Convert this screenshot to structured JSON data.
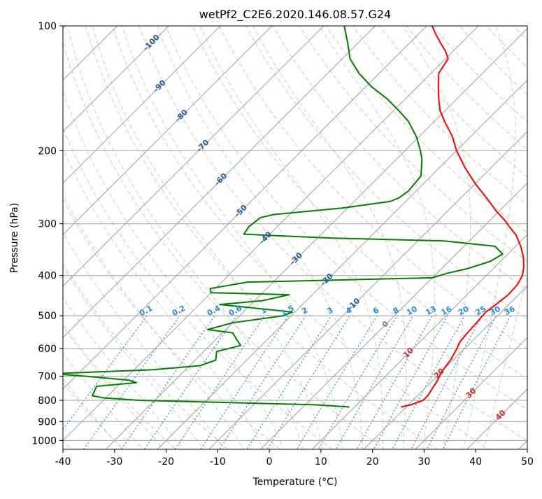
{
  "chart_data": {
    "type": "line",
    "chart_kind": "skew-t log-p diagram",
    "title": "wetPf2_C2E6.2020.146.08.57.G24",
    "xlabel": "Temperature (°C)",
    "ylabel": "Pressure (hPa)",
    "x_scale": "linear (skewed isotherms)",
    "y_scale": "log (inverted)",
    "xlim": [
      -40,
      50
    ],
    "ylim": [
      1050,
      100
    ],
    "x_ticks": [
      -40,
      -30,
      -20,
      -10,
      0,
      10,
      20,
      30,
      40,
      50
    ],
    "y_ticks": [
      100,
      200,
      300,
      400,
      500,
      600,
      700,
      800,
      900,
      1000
    ],
    "grid": true,
    "colors": {
      "temperature": "#ff0000",
      "dewpoint": "#008000",
      "isotherm_grid": "#a0a0a0",
      "dry_adiabat": "#f4a582",
      "moist_adiabat": "#a6d3a0",
      "mixing_ratio": "#1f8ce6",
      "upper_isotherm_label": "#1f5fa0",
      "lower_isotherm_label": "#d62728",
      "zero_label": "#808080"
    },
    "upper_isotherm_labels": [
      "-100",
      "-90",
      "-80",
      "-70",
      "-60",
      "-50",
      "-40",
      "-30",
      "-20",
      "-10"
    ],
    "lower_isotherm_labels": [
      "0",
      "10",
      "20",
      "30",
      "40"
    ],
    "mixing_ratio_labels": [
      "0.1",
      "0.2",
      "0.4",
      "0.6",
      "1",
      "1.5",
      "2",
      "3",
      "4",
      "6",
      "8",
      "10",
      "13",
      "16",
      "20",
      "25",
      "30",
      "36"
    ],
    "series": [
      {
        "key": "temperature",
        "points": [
          [
            830,
            19.0
          ],
          [
            820,
            20.5
          ],
          [
            800,
            22.0
          ],
          [
            780,
            22.0
          ],
          [
            750,
            21.5
          ],
          [
            720,
            21.0
          ],
          [
            680,
            20.0
          ],
          [
            640,
            19.5
          ],
          [
            600,
            18.5
          ],
          [
            580,
            17.8
          ],
          [
            550,
            17.5
          ],
          [
            520,
            17.3
          ],
          [
            490,
            17.0
          ],
          [
            470,
            17.5
          ],
          [
            445,
            18.0
          ],
          [
            420,
            17.8
          ],
          [
            400,
            17.0
          ],
          [
            380,
            15.5
          ],
          [
            360,
            13.5
          ],
          [
            340,
            11.0
          ],
          [
            320,
            8.0
          ],
          [
            305,
            5.0
          ],
          [
            295,
            3.0
          ],
          [
            280,
            -0.5
          ],
          [
            260,
            -5.0
          ],
          [
            240,
            -10.0
          ],
          [
            220,
            -15.0
          ],
          [
            200,
            -20.0
          ],
          [
            185,
            -23.5
          ],
          [
            170,
            -28.0
          ],
          [
            160,
            -31.0
          ],
          [
            150,
            -33.5
          ],
          [
            140,
            -36.0
          ],
          [
            130,
            -38.5
          ],
          [
            120,
            -39.5
          ],
          [
            115,
            -41.5
          ],
          [
            110,
            -44.0
          ],
          [
            105,
            -46.5
          ],
          [
            100,
            -49.0
          ]
        ]
      },
      {
        "key": "dewpoint",
        "points": [
          [
            830,
            9.0
          ],
          [
            820,
            2.0
          ],
          [
            810,
            -15.0
          ],
          [
            800,
            -33.0
          ],
          [
            790,
            -40.0
          ],
          [
            780,
            -43.0
          ],
          [
            740,
            -44.0
          ],
          [
            725,
            -37.0
          ],
          [
            715,
            -39.0
          ],
          [
            700,
            -48.0
          ],
          [
            690,
            -55.0
          ],
          [
            675,
            -36.5
          ],
          [
            660,
            -28.0
          ],
          [
            640,
            -26.0
          ],
          [
            610,
            -27.5
          ],
          [
            590,
            -24.0
          ],
          [
            570,
            -26.0
          ],
          [
            550,
            -28.0
          ],
          [
            540,
            -33.5
          ],
          [
            520,
            -30.0
          ],
          [
            500,
            -21.5
          ],
          [
            490,
            -20.5
          ],
          [
            480,
            -28.0
          ],
          [
            470,
            -36.0
          ],
          [
            460,
            -28.5
          ],
          [
            445,
            -24.5
          ],
          [
            440,
            -40.0
          ],
          [
            430,
            -41.0
          ],
          [
            415,
            -35.0
          ],
          [
            405,
            0.0
          ],
          [
            395,
            2.0
          ],
          [
            385,
            5.0
          ],
          [
            370,
            8.0
          ],
          [
            355,
            9.0
          ],
          [
            340,
            6.0
          ],
          [
            330,
            -5.0
          ],
          [
            325,
            -27.0
          ],
          [
            318,
            -45.0
          ],
          [
            305,
            -45.5
          ],
          [
            290,
            -45.0
          ],
          [
            285,
            -43.0
          ],
          [
            275,
            -31.0
          ],
          [
            265,
            -23.0
          ],
          [
            260,
            -22.0
          ],
          [
            250,
            -21.5
          ],
          [
            230,
            -22.0
          ],
          [
            210,
            -25.0
          ],
          [
            200,
            -27.0
          ],
          [
            185,
            -30.5
          ],
          [
            170,
            -35.0
          ],
          [
            160,
            -39.0
          ],
          [
            150,
            -43.5
          ],
          [
            140,
            -49.0
          ],
          [
            130,
            -54.0
          ],
          [
            120,
            -58.5
          ],
          [
            110,
            -62.0
          ],
          [
            100,
            -66.0
          ]
        ]
      }
    ]
  }
}
